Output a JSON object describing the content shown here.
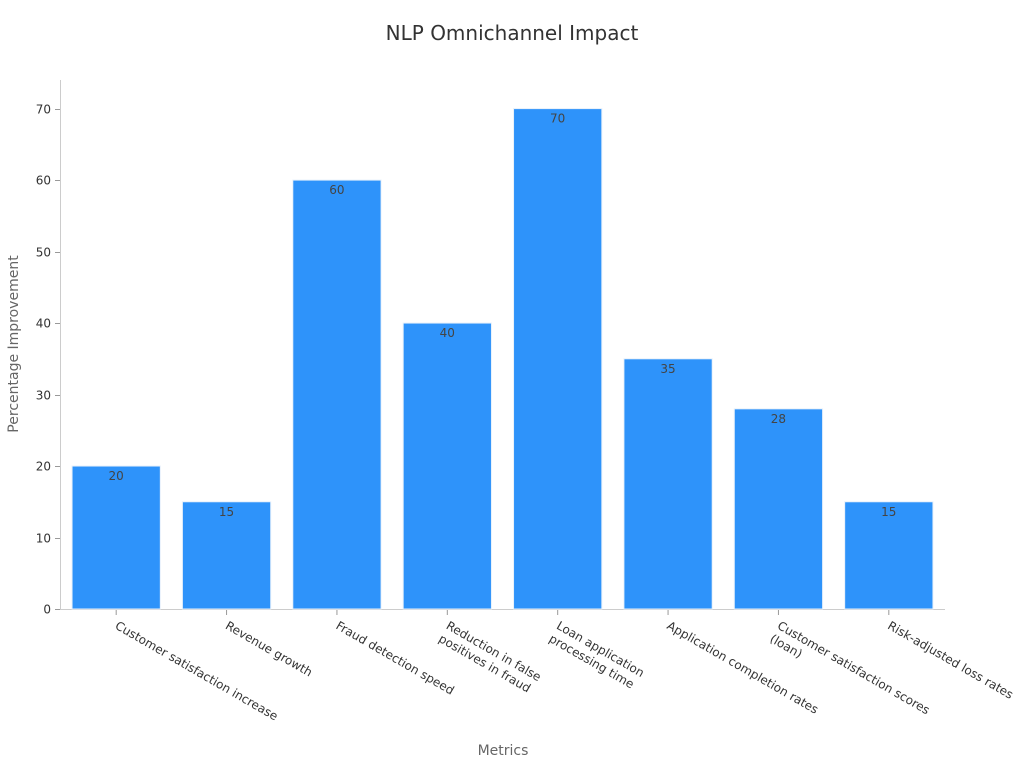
{
  "chart_data": {
    "type": "bar",
    "title": "NLP Omnichannel Impact",
    "xlabel": "Metrics",
    "ylabel": "Percentage Improvement",
    "categories": [
      [
        "Customer satisfaction increase"
      ],
      [
        "Revenue growth"
      ],
      [
        "Fraud detection speed"
      ],
      [
        "Reduction in false",
        "positives in fraud"
      ],
      [
        "Loan application",
        "processing time"
      ],
      [
        "Application completion rates"
      ],
      [
        "Customer satisfaction scores",
        "(loan)"
      ],
      [
        "Risk-adjusted loss rates"
      ]
    ],
    "values": [
      20,
      15,
      60,
      40,
      70,
      35,
      28,
      15
    ],
    "ylim": [
      0,
      74
    ],
    "yticks": [
      0,
      10,
      20,
      30,
      40,
      50,
      60,
      70
    ],
    "grid": false,
    "legend": "none",
    "colors": {
      "bar": "#2e93fa",
      "title": "#333333",
      "axis_title": "#666666",
      "tick_label": "#333333",
      "data_label": "#444444"
    }
  }
}
